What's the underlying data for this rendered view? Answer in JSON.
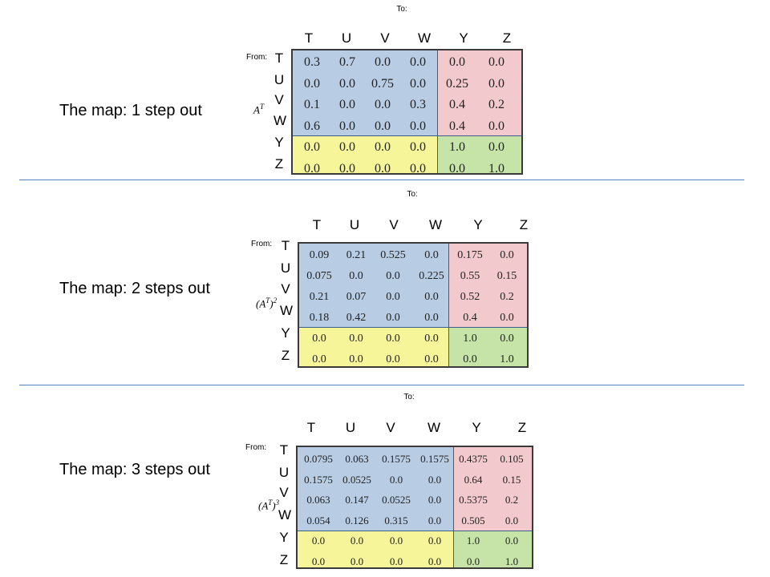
{
  "columns": [
    "T",
    "U",
    "V",
    "W",
    "Y",
    "Z"
  ],
  "rows": [
    "T",
    "U",
    "V",
    "W",
    "Y",
    "Z"
  ],
  "to_label": "To:",
  "from_label": "From:",
  "sections": [
    {
      "label": "The map: 1 step out",
      "matrix_base": "A",
      "matrix_exp": "T",
      "matrix_outer_exp": "",
      "values": [
        [
          "0.3",
          "0.7",
          "0.0",
          "0.0",
          "0.0",
          "0.0"
        ],
        [
          "0.0",
          "0.0",
          "0.75",
          "0.0",
          "0.25",
          "0.0"
        ],
        [
          "0.1",
          "0.0",
          "0.0",
          "0.3",
          "0.4",
          "0.2"
        ],
        [
          "0.6",
          "0.0",
          "0.0",
          "0.0",
          "0.4",
          "0.0"
        ],
        [
          "0.0",
          "0.0",
          "0.0",
          "0.0",
          "1.0",
          "0.0"
        ],
        [
          "0.0",
          "0.0",
          "0.0",
          "0.0",
          "0.0",
          "1.0"
        ]
      ]
    },
    {
      "label": "The map: 2 steps out",
      "matrix_base": "(A",
      "matrix_exp": "T",
      "matrix_outer_exp": "2",
      "values": [
        [
          "0.09",
          "0.21",
          "0.525",
          "0.0",
          "0.175",
          "0.0"
        ],
        [
          "0.075",
          "0.0",
          "0.0",
          "0.225",
          "0.55",
          "0.15"
        ],
        [
          "0.21",
          "0.07",
          "0.0",
          "0.0",
          "0.52",
          "0.2"
        ],
        [
          "0.18",
          "0.42",
          "0.0",
          "0.0",
          "0.4",
          "0.0"
        ],
        [
          "0.0",
          "0.0",
          "0.0",
          "0.0",
          "1.0",
          "0.0"
        ],
        [
          "0.0",
          "0.0",
          "0.0",
          "0.0",
          "0.0",
          "1.0"
        ]
      ]
    },
    {
      "label": "The map: 3 steps out",
      "matrix_base": "(A",
      "matrix_exp": "T",
      "matrix_outer_exp": "3",
      "values": [
        [
          "0.0795",
          "0.063",
          "0.1575",
          "0.1575",
          "0.4375",
          "0.105"
        ],
        [
          "0.1575",
          "0.0525",
          "0.0",
          "0.0",
          "0.64",
          "0.15"
        ],
        [
          "0.063",
          "0.147",
          "0.0525",
          "0.0",
          "0.5375",
          "0.2"
        ],
        [
          "0.054",
          "0.126",
          "0.315",
          "0.0",
          "0.505",
          "0.0"
        ],
        [
          "0.0",
          "0.0",
          "0.0",
          "0.0",
          "1.0",
          "0.0"
        ],
        [
          "0.0",
          "0.0",
          "0.0",
          "0.0",
          "0.0",
          "1.0"
        ]
      ]
    }
  ],
  "colors": {
    "transient_to_transient": "#b8cce4",
    "transient_to_absorbing": "#f2c9cc",
    "absorbing_to_transient": "#f7f59a",
    "absorbing_to_absorbing": "#c6e4a8",
    "separator": "#4f81bd"
  }
}
